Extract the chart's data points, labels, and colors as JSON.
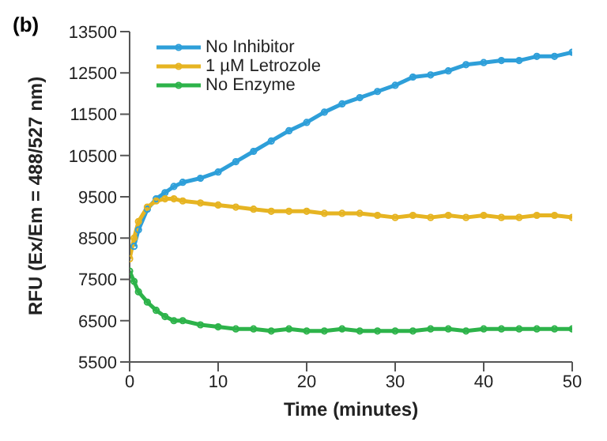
{
  "chart_data": {
    "type": "line",
    "title": "(b)",
    "xlabel": "Time (minutes)",
    "ylabel": "RFU (Ex/Em = 488/527 nm)",
    "x": [
      0,
      0.5,
      1,
      2,
      3,
      4,
      5,
      6,
      8,
      10,
      12,
      14,
      16,
      18,
      20,
      22,
      24,
      26,
      28,
      30,
      32,
      34,
      36,
      38,
      40,
      42,
      44,
      46,
      48,
      50
    ],
    "series": [
      {
        "name": "No Inhibitor",
        "color": "#2e9fd9",
        "values": [
          null,
          8300,
          8700,
          9200,
          9450,
          9600,
          9750,
          9850,
          9950,
          10100,
          10350,
          10600,
          10850,
          11100,
          11300,
          11550,
          11750,
          11900,
          12050,
          12200,
          12400,
          12450,
          12550,
          12700,
          12750,
          12800,
          12800,
          12900,
          12900,
          13000
        ]
      },
      {
        "name": "1 µM Letrozole",
        "color": "#e6b422",
        "values": [
          8000,
          8500,
          8900,
          9250,
          9400,
          9450,
          9450,
          9400,
          9350,
          9300,
          9250,
          9200,
          9150,
          9150,
          9150,
          9100,
          9100,
          9100,
          9050,
          9000,
          9050,
          9000,
          9050,
          9000,
          9050,
          9000,
          9000,
          9050,
          9050,
          9000
        ]
      },
      {
        "name": "No Enzyme",
        "color": "#2db34a",
        "values": [
          7700,
          7450,
          7200,
          6950,
          6750,
          6600,
          6500,
          6500,
          6400,
          6350,
          6300,
          6300,
          6250,
          6300,
          6250,
          6250,
          6300,
          6250,
          6250,
          6250,
          6250,
          6300,
          6300,
          6250,
          6300,
          6300,
          6300,
          6300,
          6300,
          6300
        ]
      }
    ],
    "xlim": [
      0,
      50
    ],
    "xticks": [
      0,
      10,
      20,
      30,
      40,
      50
    ],
    "ylim": [
      5500,
      13500
    ],
    "yticks": [
      5500,
      6500,
      7500,
      8500,
      9500,
      10500,
      11500,
      12500,
      13500
    ],
    "legend": "top left",
    "marker": "circle",
    "line_style": "solid",
    "grid": false
  }
}
